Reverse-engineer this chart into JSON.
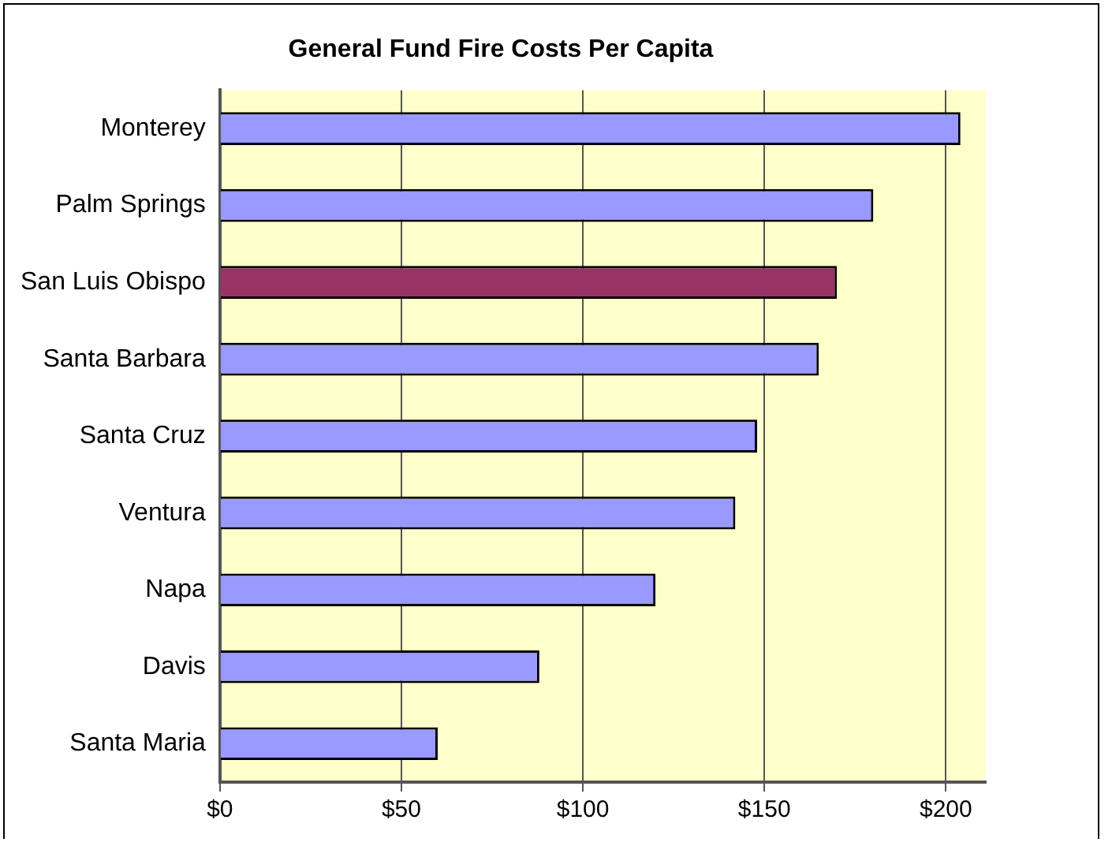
{
  "chart_data": {
    "type": "bar",
    "orientation": "horizontal",
    "title": "General Fund Fire Costs Per Capita",
    "categories": [
      "Monterey",
      "Palm Springs",
      "San Luis Obispo",
      "Santa Barbara",
      "Santa Cruz",
      "Ventura",
      "Napa",
      "Davis",
      "Santa Maria"
    ],
    "values": [
      204,
      180,
      170,
      165,
      148,
      142,
      120,
      88,
      60
    ],
    "colors": [
      "#9999ff",
      "#9999ff",
      "#993366",
      "#9999ff",
      "#9999ff",
      "#9999ff",
      "#9999ff",
      "#9999ff",
      "#9999ff"
    ],
    "xlim": [
      0,
      211
    ],
    "xticks": [
      {
        "value": 0,
        "label": "$0"
      },
      {
        "value": 50,
        "label": "$50"
      },
      {
        "value": 100,
        "label": "$100"
      },
      {
        "value": 150,
        "label": "$150"
      },
      {
        "value": 200,
        "label": "$200"
      }
    ],
    "grid": "x",
    "legend": false
  }
}
